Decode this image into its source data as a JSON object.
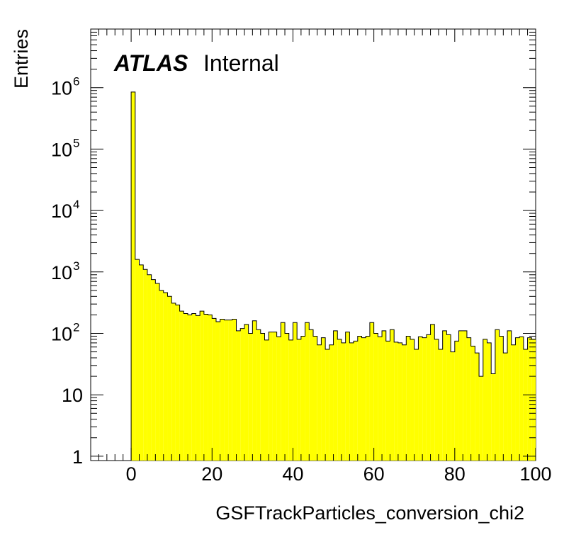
{
  "chart_data": {
    "type": "histogram",
    "xlabel": "GSFTrackParticles_conversion_chi2",
    "ylabel": "Entries",
    "xlim": [
      -10,
      100
    ],
    "ylim": [
      0.85,
      9000000
    ],
    "yscale": "log",
    "x_ticks": [
      "0",
      "20",
      "40",
      "60",
      "80",
      "100"
    ],
    "y_ticks": [
      {
        "value": 1,
        "base": "1",
        "exp": ""
      },
      {
        "value": 10,
        "base": "10",
        "exp": ""
      },
      {
        "value": 100,
        "base": "10",
        "exp": "2"
      },
      {
        "value": 1000,
        "base": "10",
        "exp": "3"
      },
      {
        "value": 10000,
        "base": "10",
        "exp": "4"
      },
      {
        "value": 100000,
        "base": "10",
        "exp": "5"
      },
      {
        "value": 1000000,
        "base": "10",
        "exp": "6"
      }
    ],
    "fill_color": "#ffff00",
    "line_color": "#000000",
    "grid": false,
    "bin_width": 1,
    "bin_start": 0,
    "values": [
      850000,
      1600,
      1300,
      1100,
      900,
      750,
      650,
      500,
      460,
      400,
      310,
      290,
      230,
      210,
      200,
      210,
      195,
      230,
      205,
      200,
      175,
      155,
      170,
      165,
      165,
      170,
      110,
      120,
      140,
      100,
      160,
      115,
      100,
      78,
      105,
      105,
      88,
      150,
      100,
      78,
      150,
      80,
      90,
      150,
      115,
      90,
      65,
      85,
      55,
      65,
      110,
      80,
      70,
      105,
      70,
      75,
      90,
      85,
      90,
      150,
      100,
      88,
      110,
      75,
      115,
      72,
      70,
      65,
      90,
      80,
      55,
      88,
      85,
      95,
      140,
      80,
      55,
      110,
      95,
      50,
      75,
      110,
      110,
      85,
      62,
      48,
      20,
      80,
      70,
      22,
      115,
      90,
      48,
      110,
      65,
      85,
      88,
      55,
      85,
      80
    ]
  },
  "header": {
    "atlas_label": "ATLAS",
    "status_label": "Internal"
  }
}
